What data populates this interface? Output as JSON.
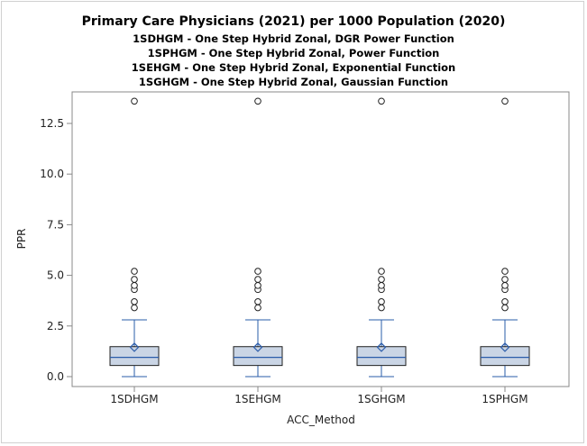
{
  "titles": {
    "main": "Primary Care Physicians (2021) per 1000 Population (2020)",
    "sub1": "1SDHGM - One Step Hybrid Zonal, DGR Power Function",
    "sub2": "1SPHGM - One Step Hybrid Zonal, Power Function",
    "sub3": "1SEHGM - One Step Hybrid Zonal, Exponential Function",
    "sub4": "1SGHGM - One Step Hybrid Zonal, Gaussian Function"
  },
  "chart_data": {
    "type": "box",
    "title": "Primary Care Physicians (2021) per 1000 Population (2020)",
    "xlabel": "ACC_Method",
    "ylabel": "PPR",
    "ylim": [
      -0.4,
      14
    ],
    "yticks": [
      0.0,
      2.5,
      5.0,
      7.5,
      10.0,
      12.5
    ],
    "ytick_labels": [
      "0.0",
      "2.5",
      "5.0",
      "7.5",
      "10.0",
      "12.5"
    ],
    "grid": false,
    "categories": [
      "1SDHGM",
      "1SEHGM",
      "1SGHGM",
      "1SPHGM"
    ],
    "boxes": [
      {
        "category": "1SDHGM",
        "whisker_low": 0.0,
        "q1": 0.55,
        "median": 0.95,
        "q3": 1.48,
        "whisker_high": 2.8,
        "mean": 1.45,
        "outliers": [
          3.4,
          3.7,
          4.3,
          4.5,
          4.8,
          5.2,
          13.6
        ]
      },
      {
        "category": "1SEHGM",
        "whisker_low": 0.0,
        "q1": 0.55,
        "median": 0.95,
        "q3": 1.48,
        "whisker_high": 2.8,
        "mean": 1.45,
        "outliers": [
          3.4,
          3.7,
          4.3,
          4.5,
          4.8,
          5.2,
          13.6
        ]
      },
      {
        "category": "1SGHGM",
        "whisker_low": 0.0,
        "q1": 0.55,
        "median": 0.95,
        "q3": 1.48,
        "whisker_high": 2.8,
        "mean": 1.45,
        "outliers": [
          3.4,
          3.7,
          4.3,
          4.5,
          4.8,
          5.2,
          13.6
        ]
      },
      {
        "category": "1SPHGM",
        "whisker_low": 0.0,
        "q1": 0.55,
        "median": 0.95,
        "q3": 1.48,
        "whisker_high": 2.8,
        "mean": 1.45,
        "outliers": [
          3.4,
          3.7,
          4.3,
          4.5,
          4.8,
          5.2,
          13.6
        ]
      }
    ],
    "colors": {
      "box_fill": "#cad5e5",
      "box_edge": "#1f1f1f",
      "whisker": "#2a5caa",
      "median": "#2a5caa",
      "mean_marker": "#2a5caa",
      "outlier": "#1f1f1f",
      "axis": "#888888"
    }
  }
}
